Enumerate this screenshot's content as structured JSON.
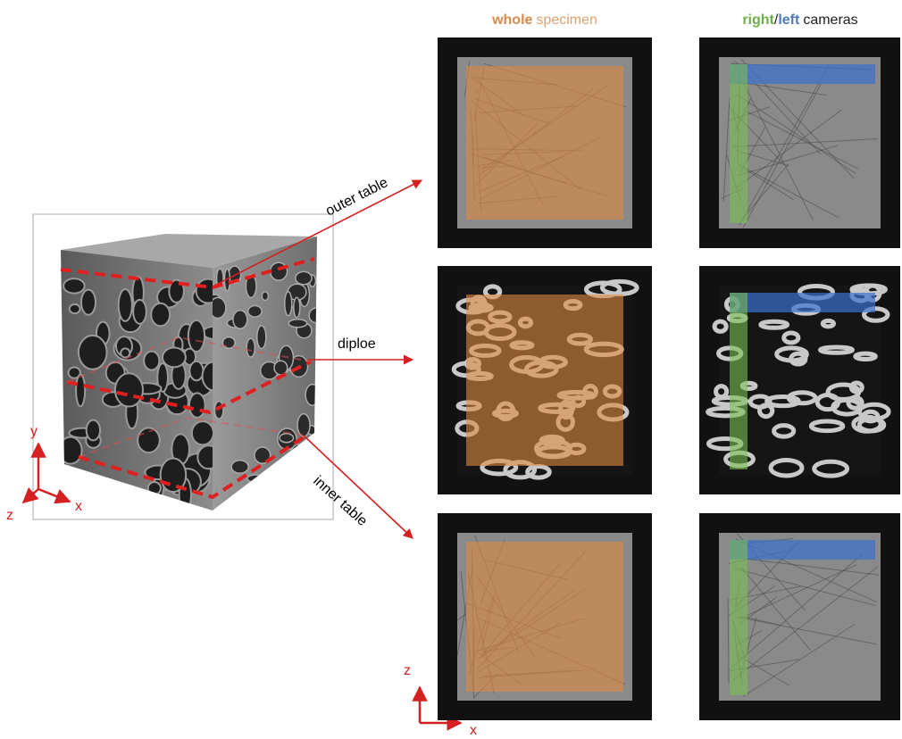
{
  "column_headers": [
    {
      "parts": [
        "whole",
        "specimen"
      ]
    },
    {
      "parts": [
        "right",
        "/",
        "left",
        "cameras"
      ]
    }
  ],
  "layers": [
    "outer table",
    "diploe",
    "inner table"
  ],
  "axes_3d": [
    "y",
    "z",
    "x"
  ],
  "axes_2d": [
    "z",
    "x"
  ]
}
